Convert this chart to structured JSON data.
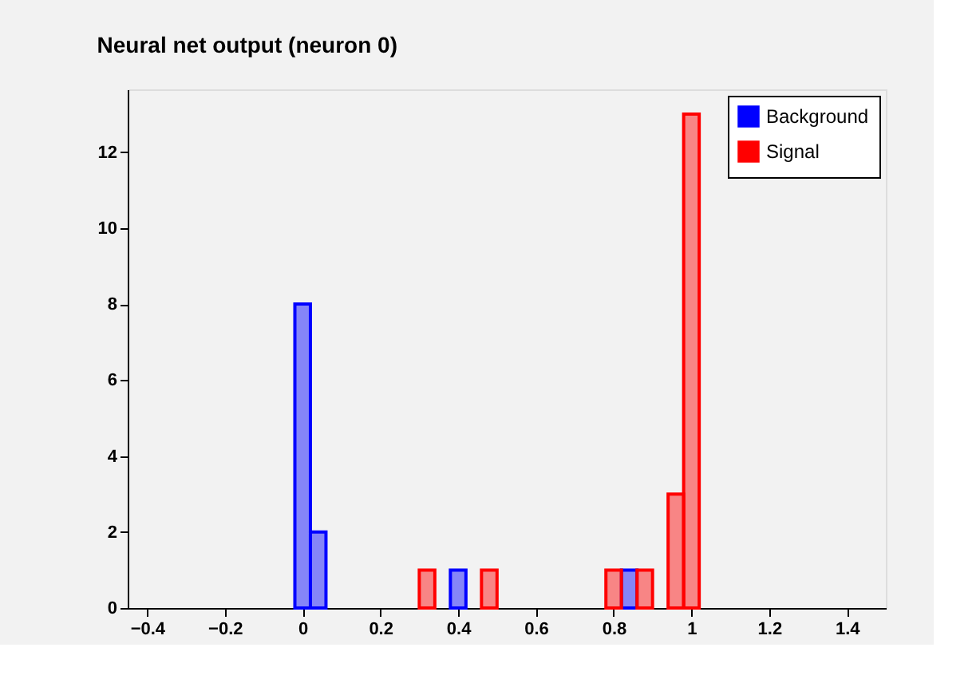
{
  "chart_data": {
    "type": "histogram",
    "title": "Neural net output (neuron 0)",
    "bins": [
      -0.02,
      0.02,
      0.06,
      0.1,
      0.14,
      0.18,
      0.22,
      0.26,
      0.3,
      0.34,
      0.38,
      0.42,
      0.46,
      0.5,
      0.54,
      0.58,
      0.62,
      0.66,
      0.7,
      0.74,
      0.78,
      0.82,
      0.86,
      0.9,
      0.94,
      0.98,
      1.02
    ],
    "series": [
      {
        "name": "Background",
        "color": "#0000ff",
        "values": [
          8,
          2,
          0,
          0,
          0,
          0,
          0,
          0,
          0,
          0,
          1,
          0,
          0,
          0,
          0,
          0,
          0,
          0,
          0,
          0,
          0,
          1,
          0,
          0,
          0,
          0
        ]
      },
      {
        "name": "Signal",
        "color": "#ff0000",
        "values": [
          0,
          0,
          0,
          0,
          0,
          0,
          0,
          0,
          1,
          0,
          0,
          0,
          1,
          0,
          0,
          0,
          0,
          0,
          0,
          0,
          1,
          0,
          1,
          0,
          3,
          13
        ]
      }
    ],
    "xlim": [
      -0.45,
      1.5
    ],
    "xticks": [
      -0.4,
      -0.2,
      0,
      0.2,
      0.4,
      0.6,
      0.8,
      1,
      1.2,
      1.4
    ],
    "ylim": [
      0,
      13.65
    ],
    "yticks": [
      0,
      2,
      4,
      6,
      8,
      10,
      12
    ],
    "grid": false,
    "legend": "top right"
  }
}
